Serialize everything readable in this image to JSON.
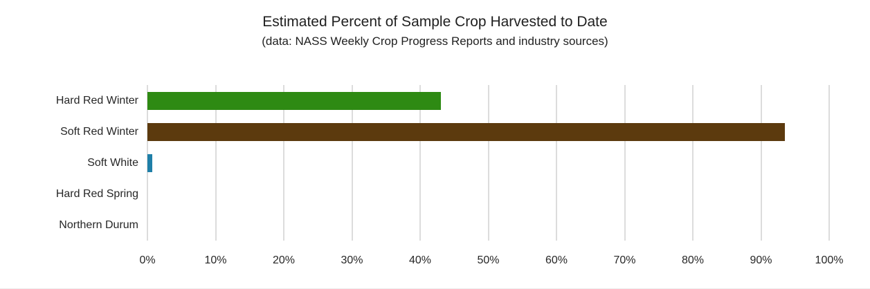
{
  "page": {
    "background_color": "#ffffff"
  },
  "chart_data": {
    "type": "bar",
    "orientation": "horizontal",
    "title": "Estimated Percent of Sample Crop Harvested to Date",
    "subtitle": "(data: NASS Weekly Crop Progress Reports and industry sources)",
    "categories": [
      "Hard Red Winter",
      "Soft Red Winter",
      "Soft White",
      "Hard Red Spring",
      "Northern Durum"
    ],
    "values": [
      43,
      93.5,
      0.7,
      0,
      0
    ],
    "colors": [
      "#2e8a13",
      "#5c3a0e",
      "#1f7fa8",
      null,
      null
    ],
    "xlabel": "",
    "ylabel": "",
    "xlim": [
      0,
      100
    ],
    "x_tick_step": 10,
    "x_tick_labels": [
      "0%",
      "10%",
      "20%",
      "30%",
      "40%",
      "50%",
      "60%",
      "70%",
      "80%",
      "90%",
      "100%"
    ],
    "grid": "vertical-gridlines-on",
    "gridline_color": "#dcdcdc",
    "text_color": "#262626",
    "legend": "none"
  }
}
